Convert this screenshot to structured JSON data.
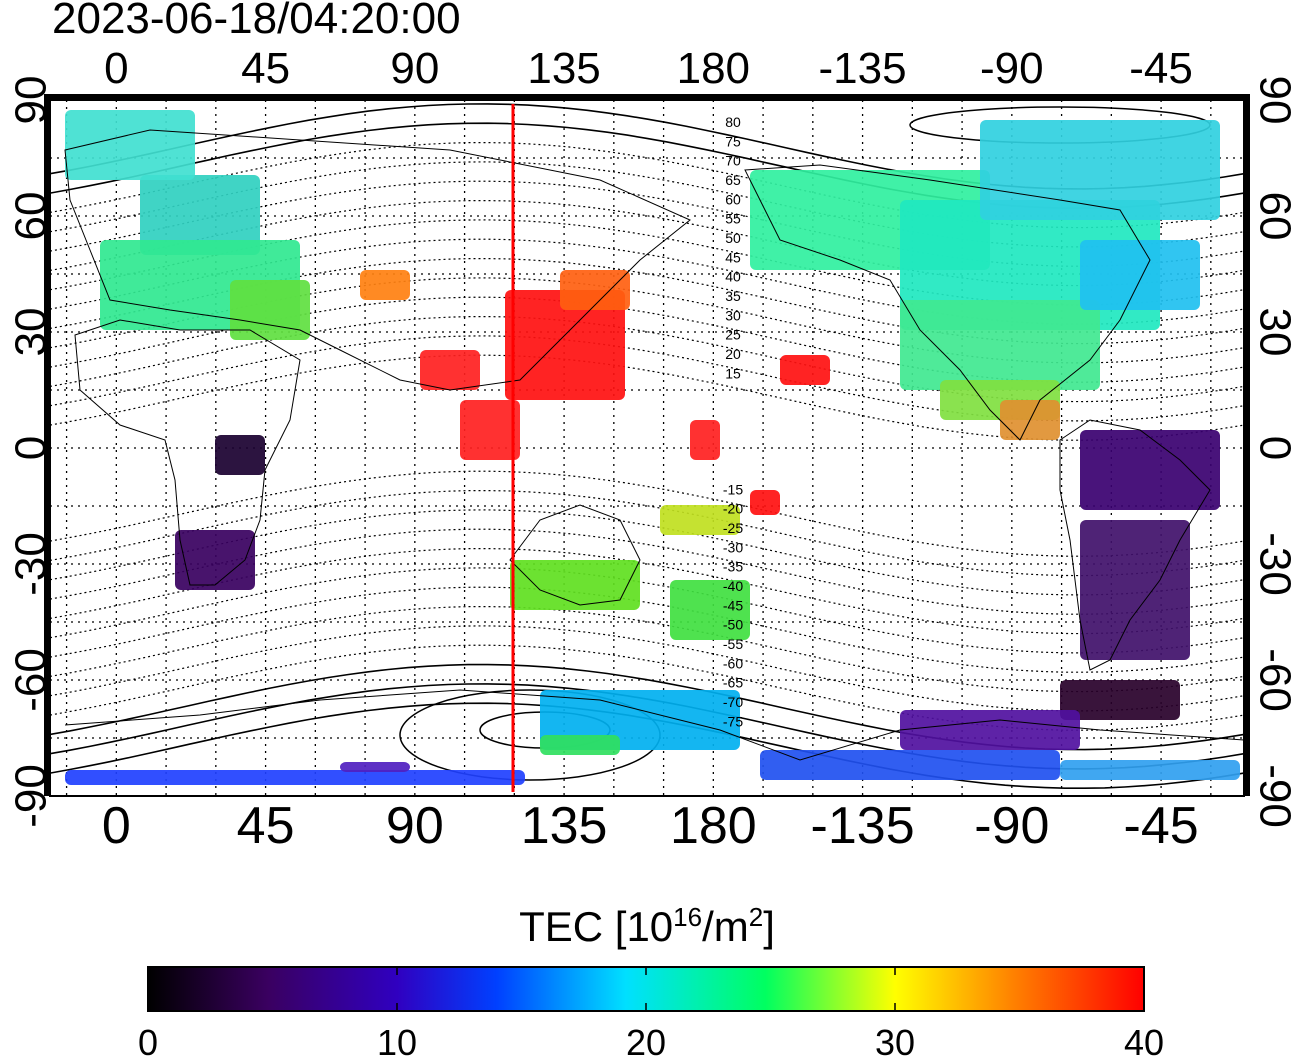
{
  "timestamp": "2023-06-18/04:20:00",
  "map": {
    "lon_ticks_top": [
      "0",
      "45",
      "90",
      "135",
      "180",
      "-135",
      "-90",
      "-45"
    ],
    "lon_ticks_bottom": [
      "0",
      "45",
      "90",
      "135",
      "180",
      "-135",
      "-90",
      "-45"
    ],
    "lat_ticks_left": [
      "90",
      "60",
      "30",
      "0",
      "-30",
      "-60",
      "-90"
    ],
    "lat_ticks_right": [
      "90",
      "60",
      "30",
      "0",
      "-30",
      "-60",
      "-90"
    ],
    "contour_labels": [
      "80",
      "75",
      "70",
      "65",
      "60",
      "55",
      "50",
      "45",
      "40",
      "35",
      "30",
      "25",
      "20",
      "15",
      "-15",
      "-20",
      "-25",
      "-30",
      "-35",
      "-40",
      "-45",
      "-50",
      "-55",
      "-60",
      "-65",
      "-70",
      "-75"
    ],
    "subsolar_meridian_color": "#ff0000"
  },
  "colorbar": {
    "title_prefix": "TEC  [10",
    "title_sup1": "16",
    "title_mid": "/m",
    "title_sup2": "2",
    "title_suffix": "]",
    "tick_labels": [
      "0",
      "10",
      "20",
      "30",
      "40"
    ],
    "colors": [
      "#000000",
      "#3a0060",
      "#3000c0",
      "#0040ff",
      "#00e0ff",
      "#00ff60",
      "#ffff00",
      "#ff8000",
      "#ff0000"
    ]
  }
}
